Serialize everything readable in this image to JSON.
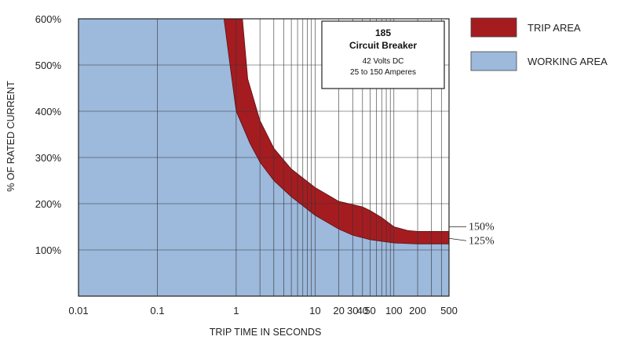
{
  "chart_data": {
    "type": "area",
    "title": "",
    "xlabel": "TRIP TIME IN SECONDS",
    "ylabel": "% OF RATED CURRENT",
    "x_scale": "log",
    "xlim": [
      0.01,
      500
    ],
    "ylim": [
      0,
      600
    ],
    "x_ticks": [
      {
        "value": 0.01,
        "label": "0.01"
      },
      {
        "value": 0.1,
        "label": "0.1"
      },
      {
        "value": 1,
        "label": "1"
      },
      {
        "value": 10,
        "label": "10"
      },
      {
        "value": 20,
        "label": "20"
      },
      {
        "value": 30,
        "label": "30"
      },
      {
        "value": 40,
        "label": "40"
      },
      {
        "value": 50,
        "label": "50"
      },
      {
        "value": 100,
        "label": "100"
      },
      {
        "value": 200,
        "label": "200"
      },
      {
        "value": 500,
        "label": "500"
      }
    ],
    "y_ticks": [
      {
        "value": 100,
        "label": "100%"
      },
      {
        "value": 200,
        "label": "200%"
      },
      {
        "value": 300,
        "label": "300%"
      },
      {
        "value": 400,
        "label": "400%"
      },
      {
        "value": 500,
        "label": "500%"
      },
      {
        "value": 600,
        "label": "600%"
      }
    ],
    "grid": true,
    "legend_position": "right",
    "series": [
      {
        "name": "WORKING AREA",
        "color": "#9db9dc",
        "boundary": {
          "x": [
            0.7,
            0.85,
            1,
            1.5,
            2,
            3,
            5,
            10,
            20,
            30,
            50,
            100,
            200,
            500
          ],
          "y": [
            600,
            490,
            400,
            330,
            290,
            250,
            215,
            175,
            145,
            132,
            122,
            115,
            113,
            113
          ]
        }
      },
      {
        "name": "TRIP AREA",
        "color": "#a51c20",
        "boundary": {
          "x": [
            1.2,
            1.4,
            2,
            3,
            5,
            10,
            20,
            30,
            40,
            50,
            70,
            100,
            150,
            200,
            500
          ],
          "y": [
            600,
            470,
            380,
            320,
            275,
            235,
            205,
            198,
            193,
            185,
            170,
            150,
            142,
            140,
            140
          ]
        }
      }
    ],
    "annotations": [
      {
        "text": "150%",
        "y": 150
      },
      {
        "text": "125%",
        "y": 125
      }
    ],
    "info_box": {
      "number": "185",
      "name": "Circuit Breaker",
      "voltage": "42 Volts DC",
      "range": "25 to 150 Amperes"
    }
  },
  "colors": {
    "working_fill": "#9db9dc",
    "trip_fill": "#a51c20",
    "grid": "#333333"
  }
}
